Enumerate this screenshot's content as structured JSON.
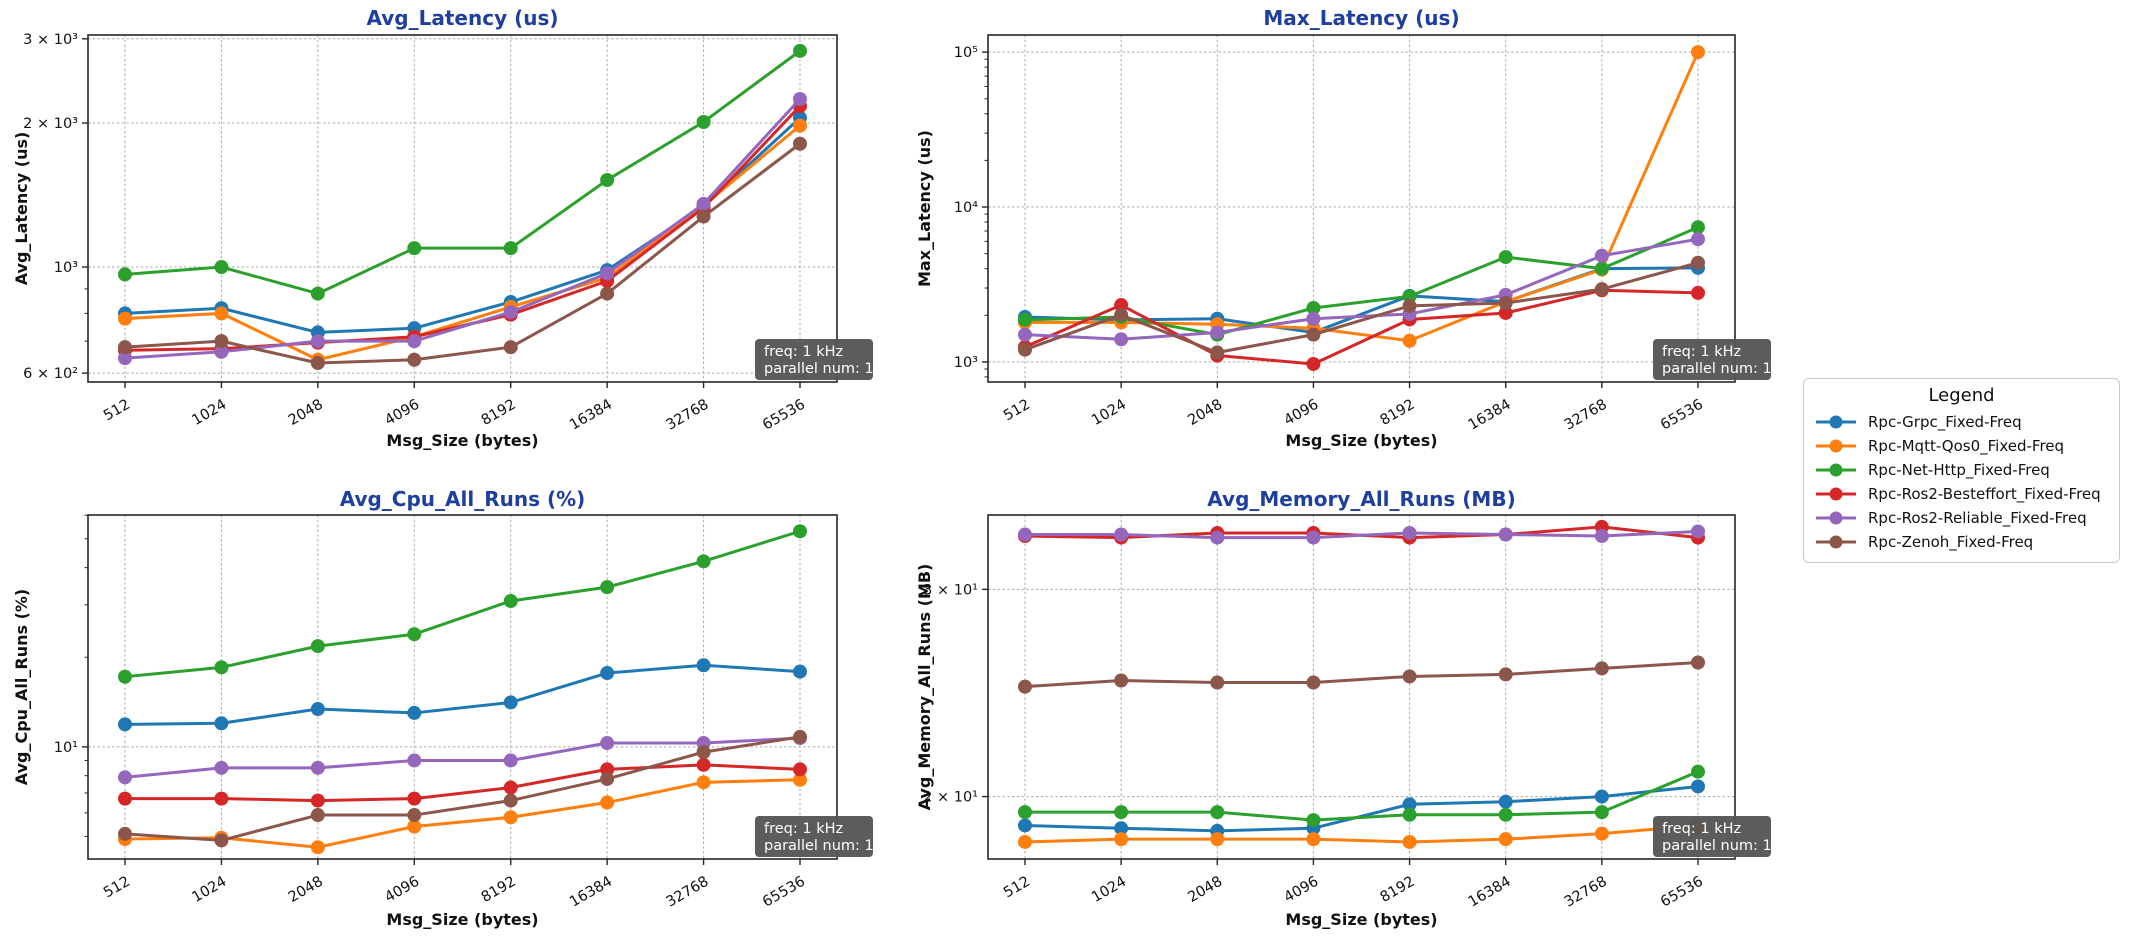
{
  "figure": {
    "background": "#ffffff",
    "title_color": "#1e3f9e",
    "grid_color": "#aaaaaa",
    "spine_color": "#262626",
    "text_color": "#111111"
  },
  "annotation": {
    "line1": "freq: 1 kHz",
    "line2": "parallel num: 1",
    "bg": "#555555",
    "text_color": "#ffffff"
  },
  "legend": {
    "title": "Legend",
    "items": [
      {
        "label": "Rpc-Grpc_Fixed-Freq",
        "color": "#1f77b4"
      },
      {
        "label": "Rpc-Mqtt-Qos0_Fixed-Freq",
        "color": "#ff7f0e"
      },
      {
        "label": "Rpc-Net-Http_Fixed-Freq",
        "color": "#2ca02c"
      },
      {
        "label": "Rpc-Ros2-Besteffort_Fixed-Freq",
        "color": "#d62728"
      },
      {
        "label": "Rpc-Ros2-Reliable_Fixed-Freq",
        "color": "#9467bd"
      },
      {
        "label": "Rpc-Zenoh_Fixed-Freq",
        "color": "#8c564b"
      }
    ]
  },
  "chart_data": [
    {
      "id": "avg-latency",
      "type": "line",
      "title": "Avg_Latency (us)",
      "xlabel": "Msg_Size (bytes)",
      "ylabel": "Avg_Latency (us)",
      "x_categories": [
        "512",
        "1024",
        "2048",
        "4096",
        "8192",
        "16384",
        "32768",
        "65536"
      ],
      "y_scale": "log",
      "ylim": [
        575,
        3055
      ],
      "grid": true,
      "legend_position": "outside-right",
      "y_ticks": [
        {
          "v": 600,
          "label": "6 × 10²"
        },
        {
          "v": 1000,
          "label": "10³"
        },
        {
          "v": 2000,
          "label": "2 × 10³"
        },
        {
          "v": 3000,
          "label": "3 × 10³"
        }
      ],
      "series": [
        {
          "name": "Rpc-Grpc_Fixed-Freq",
          "color": "#1f77b4",
          "values": [
            800,
            820,
            730,
            745,
            845,
            985,
            1340,
            2050
          ]
        },
        {
          "name": "Rpc-Mqtt-Qos0_Fixed-Freq",
          "color": "#ff7f0e",
          "values": [
            780,
            800,
            640,
            715,
            825,
            950,
            1345,
            1975
          ]
        },
        {
          "name": "Rpc-Net-Http_Fixed-Freq",
          "color": "#2ca02c",
          "values": [
            965,
            1000,
            880,
            1095,
            1095,
            1520,
            2010,
            2830
          ]
        },
        {
          "name": "Rpc-Ros2-Besteffort_Fixed-Freq",
          "color": "#d62728",
          "values": [
            670,
            675,
            695,
            715,
            795,
            935,
            1330,
            2170
          ]
        },
        {
          "name": "Rpc-Ros2-Reliable_Fixed-Freq",
          "color": "#9467bd",
          "values": [
            645,
            665,
            700,
            700,
            805,
            970,
            1355,
            2245
          ]
        },
        {
          "name": "Rpc-Zenoh_Fixed-Freq",
          "color": "#8c564b",
          "values": [
            680,
            700,
            630,
            640,
            680,
            880,
            1275,
            1810
          ]
        }
      ]
    },
    {
      "id": "max-latency",
      "type": "line",
      "title": "Max_Latency (us)",
      "xlabel": "Msg_Size (bytes)",
      "ylabel": "Max_Latency (us)",
      "x_categories": [
        "512",
        "1024",
        "2048",
        "4096",
        "8192",
        "16384",
        "32768",
        "65536"
      ],
      "y_scale": "log",
      "ylim": [
        742,
        129000
      ],
      "grid": true,
      "y_ticks": [
        {
          "v": 1000,
          "label": "10³"
        },
        {
          "v": 10000,
          "label": "10⁴"
        },
        {
          "v": 100000,
          "label": "10⁵"
        }
      ],
      "series": [
        {
          "name": "Rpc-Grpc_Fixed-Freq",
          "color": "#1f77b4",
          "values": [
            1950,
            1870,
            1900,
            1550,
            2670,
            2450,
            4000,
            4050
          ]
        },
        {
          "name": "Rpc-Mqtt-Qos0_Fixed-Freq",
          "color": "#ff7f0e",
          "values": [
            1800,
            1800,
            1750,
            1650,
            1370,
            2450,
            3950,
            100000
          ]
        },
        {
          "name": "Rpc-Net-Http_Fixed-Freq",
          "color": "#2ca02c",
          "values": [
            1870,
            1950,
            1500,
            2230,
            2650,
            4750,
            4000,
            7400
          ]
        },
        {
          "name": "Rpc-Ros2-Besteffort_Fixed-Freq",
          "color": "#d62728",
          "values": [
            1250,
            2330,
            1100,
            970,
            1880,
            2070,
            2900,
            2790
          ]
        },
        {
          "name": "Rpc-Ros2-Reliable_Fixed-Freq",
          "color": "#9467bd",
          "values": [
            1500,
            1400,
            1550,
            1900,
            2040,
            2710,
            4850,
            6200
          ]
        },
        {
          "name": "Rpc-Zenoh_Fixed-Freq",
          "color": "#8c564b",
          "values": [
            1200,
            2010,
            1150,
            1500,
            2300,
            2400,
            2950,
            4370
          ]
        }
      ]
    },
    {
      "id": "avg-cpu",
      "type": "line",
      "title": "Avg_Cpu_All_Runs (%)",
      "xlabel": "Msg_Size (bytes)",
      "ylabel": "Avg_Cpu_All_Runs (%)",
      "x_categories": [
        "512",
        "1024",
        "2048",
        "4096",
        "8192",
        "16384",
        "32768",
        "65536"
      ],
      "y_scale": "log",
      "ylim": [
        4.2,
        60.1
      ],
      "grid": true,
      "y_ticks": [
        {
          "v": 10,
          "label": "10¹"
        }
      ],
      "series": [
        {
          "name": "Rpc-Grpc_Fixed-Freq",
          "color": "#1f77b4",
          "values": [
            11.9,
            12.0,
            13.4,
            13.0,
            14.1,
            17.7,
            18.8,
            17.9
          ]
        },
        {
          "name": "Rpc-Mqtt-Qos0_Fixed-Freq",
          "color": "#ff7f0e",
          "values": [
            4.9,
            4.95,
            4.6,
            5.4,
            5.8,
            6.5,
            7.6,
            7.75
          ]
        },
        {
          "name": "Rpc-Net-Http_Fixed-Freq",
          "color": "#2ca02c",
          "values": [
            17.2,
            18.5,
            21.8,
            23.9,
            30.9,
            34.4,
            42.0,
            53.0
          ]
        },
        {
          "name": "Rpc-Ros2-Besteffort_Fixed-Freq",
          "color": "#d62728",
          "values": [
            6.7,
            6.7,
            6.6,
            6.7,
            7.3,
            8.4,
            8.7,
            8.4
          ]
        },
        {
          "name": "Rpc-Ros2-Reliable_Fixed-Freq",
          "color": "#9467bd",
          "values": [
            7.9,
            8.5,
            8.5,
            9.0,
            9.0,
            10.3,
            10.3,
            10.7
          ]
        },
        {
          "name": "Rpc-Zenoh_Fixed-Freq",
          "color": "#8c564b",
          "values": [
            5.1,
            4.85,
            5.9,
            5.9,
            6.6,
            7.8,
            9.6,
            10.8
          ]
        }
      ]
    },
    {
      "id": "avg-memory",
      "type": "line",
      "title": "Avg_Memory_All_Runs (MB)",
      "xlabel": "Msg_Size (bytes)",
      "ylabel": "Avg_Memory_All_Runs (MB)",
      "x_categories": [
        "512",
        "1024",
        "2048",
        "4096",
        "8192",
        "16384",
        "32768",
        "65536"
      ],
      "y_scale": "log",
      "ylim": [
        17.7,
        34.7
      ],
      "grid": true,
      "y_ticks": [
        {
          "v": 20,
          "label": "2 × 10¹"
        },
        {
          "v": 30,
          "label": "3 × 10¹"
        }
      ],
      "series": [
        {
          "name": "Rpc-Grpc_Fixed-Freq",
          "color": "#1f77b4",
          "values": [
            18.9,
            18.8,
            18.7,
            18.8,
            19.7,
            19.8,
            20.0,
            20.4
          ]
        },
        {
          "name": "Rpc-Mqtt-Qos0_Fixed-Freq",
          "color": "#ff7f0e",
          "values": [
            18.3,
            18.4,
            18.4,
            18.4,
            18.3,
            18.4,
            18.6,
            18.9
          ]
        },
        {
          "name": "Rpc-Net-Http_Fixed-Freq",
          "color": "#2ca02c",
          "values": [
            19.4,
            19.4,
            19.4,
            19.1,
            19.3,
            19.3,
            19.4,
            21.0
          ]
        },
        {
          "name": "Rpc-Ros2-Besteffort_Fixed-Freq",
          "color": "#d62728",
          "values": [
            33.3,
            33.2,
            33.5,
            33.5,
            33.2,
            33.4,
            33.9,
            33.2
          ]
        },
        {
          "name": "Rpc-Ros2-Reliable_Fixed-Freq",
          "color": "#9467bd",
          "values": [
            33.4,
            33.4,
            33.2,
            33.2,
            33.5,
            33.4,
            33.3,
            33.6
          ]
        },
        {
          "name": "Rpc-Zenoh_Fixed-Freq",
          "color": "#8c564b",
          "values": [
            24.8,
            25.1,
            25.0,
            25.0,
            25.3,
            25.4,
            25.7,
            26.0
          ]
        }
      ]
    }
  ]
}
